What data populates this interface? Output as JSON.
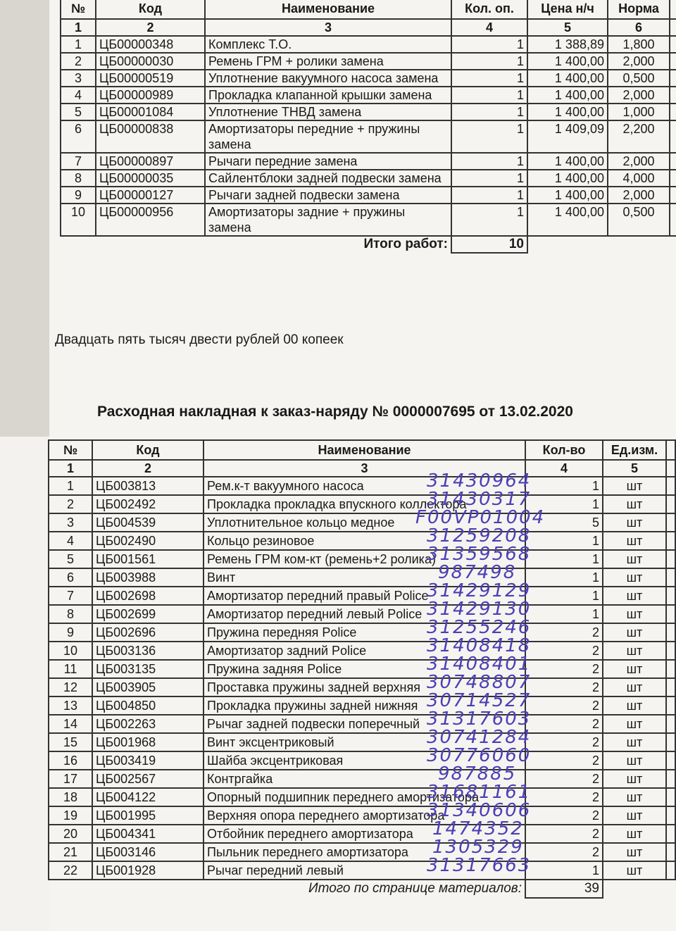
{
  "works": {
    "headers": [
      "№",
      "Код",
      "Наименование",
      "Кол. оп.",
      "Цена н/ч",
      "Норма"
    ],
    "col_numbers": [
      "1",
      "2",
      "3",
      "4",
      "5",
      "6"
    ],
    "rows": [
      {
        "n": "1",
        "code": "ЦБ00000348",
        "name": "Комплекс Т.О.",
        "qty": "1",
        "price": "1 388,89",
        "norm": "1,800"
      },
      {
        "n": "2",
        "code": "ЦБ00000030",
        "name": "Ремень ГРМ + ролики замена",
        "qty": "1",
        "price": "1 400,00",
        "norm": "2,000"
      },
      {
        "n": "3",
        "code": "ЦБ00000519",
        "name": "Уплотнение  вакуумного насоса замена",
        "qty": "1",
        "price": "1 400,00",
        "norm": "0,500"
      },
      {
        "n": "4",
        "code": "ЦБ00000989",
        "name": "Прокладка клапанной крышки замена",
        "qty": "1",
        "price": "1 400,00",
        "norm": "2,000"
      },
      {
        "n": "5",
        "code": "ЦБ00001084",
        "name": "Уплотнение ТНВД замена",
        "qty": "1",
        "price": "1 400,00",
        "norm": "1,000"
      },
      {
        "n": "6",
        "code": "ЦБ00000838",
        "name": "Амортизаторы передние + пружины замена",
        "qty": "1",
        "price": "1 409,09",
        "norm": "2,200"
      },
      {
        "n": "7",
        "code": "ЦБ00000897",
        "name": "Рычаги передние замена",
        "qty": "1",
        "price": "1 400,00",
        "norm": "2,000"
      },
      {
        "n": "8",
        "code": "ЦБ00000035",
        "name": "Сайлентблоки задней подвески замена",
        "qty": "1",
        "price": "1 400,00",
        "norm": "4,000"
      },
      {
        "n": "9",
        "code": "ЦБ00000127",
        "name": "Рычаги задней подвески замена",
        "qty": "1",
        "price": "1 400,00",
        "norm": "2,000"
      },
      {
        "n": "10",
        "code": "ЦБ00000956",
        "name": "Амортизаторы задние + пружины замена",
        "qty": "1",
        "price": "1 400,00",
        "norm": "0,500"
      }
    ],
    "total_label": "Итого работ:",
    "total_qty": "10"
  },
  "amount_words": "Двадцать пять тысяч двести рублей 00 копеек",
  "invoice_title": "Расходная накладная к заказ-наряду №  0000007695 от 13.02.2020",
  "materials": {
    "headers": [
      "№",
      "Код",
      "Наименование",
      "Кол-во",
      "Ед.изм."
    ],
    "col_numbers": [
      "1",
      "2",
      "3",
      "4",
      "5"
    ],
    "rows": [
      {
        "n": "1",
        "code": "ЦБ003813",
        "name": "Рем.к-т вакуумного насоса",
        "hw": "31430964",
        "qty": "1",
        "unit": "шт"
      },
      {
        "n": "2",
        "code": "ЦБ002492",
        "name": "Прокладка прокладка впускного коллектора",
        "hw": "31430317",
        "qty": "1",
        "unit": "шт"
      },
      {
        "n": "3",
        "code": "ЦБ004539",
        "name": "Уплотнительное кольцо медное",
        "hw": "F00VP01004",
        "qty": "5",
        "unit": "шт"
      },
      {
        "n": "4",
        "code": "ЦБ002490",
        "name": "Кольцо резиновое",
        "hw": "31259208",
        "qty": "1",
        "unit": "шт"
      },
      {
        "n": "5",
        "code": "ЦБ001561",
        "name": "Ремень ГРМ ком-кт (ремень+2 ролика)",
        "hw": "31359568",
        "qty": "1",
        "unit": "шт"
      },
      {
        "n": "6",
        "code": "ЦБ003988",
        "name": "Винт",
        "hw": "987498",
        "qty": "1",
        "unit": "шт"
      },
      {
        "n": "7",
        "code": "ЦБ002698",
        "name": "Амортизатор передний правый Police",
        "hw": "31429129",
        "qty": "1",
        "unit": "шт"
      },
      {
        "n": "8",
        "code": "ЦБ002699",
        "name": "Амортизатор передний левый Police",
        "hw": "31429130",
        "qty": "1",
        "unit": "шт"
      },
      {
        "n": "9",
        "code": "ЦБ002696",
        "name": "Пружина передняя Police",
        "hw": "31255246",
        "qty": "2",
        "unit": "шт"
      },
      {
        "n": "10",
        "code": "ЦБ003136",
        "name": "Амортизатор задний Police",
        "hw": "31408418",
        "qty": "2",
        "unit": "шт"
      },
      {
        "n": "11",
        "code": "ЦБ003135",
        "name": "Пружина задняя Police",
        "hw": "31408401",
        "qty": "2",
        "unit": "шт"
      },
      {
        "n": "12",
        "code": "ЦБ003905",
        "name": "Проставка пружины задней верхняя",
        "hw": "30748807",
        "qty": "2",
        "unit": "шт"
      },
      {
        "n": "13",
        "code": "ЦБ004850",
        "name": "Прокладка пружины задней нижняя",
        "hw": "30714527",
        "qty": "2",
        "unit": "шт"
      },
      {
        "n": "14",
        "code": "ЦБ002263",
        "name": "Рычаг задней подвески поперечный",
        "hw": "31317603",
        "qty": "2",
        "unit": "шт"
      },
      {
        "n": "15",
        "code": "ЦБ001968",
        "name": "Винт эксцентриковый",
        "hw": "30741284",
        "qty": "2",
        "unit": "шт"
      },
      {
        "n": "16",
        "code": "ЦБ003419",
        "name": "Шайба эксцентриковая",
        "hw": "30776060",
        "qty": "2",
        "unit": "шт"
      },
      {
        "n": "17",
        "code": "ЦБ002567",
        "name": "Контргайка",
        "hw": "987885",
        "qty": "2",
        "unit": "шт"
      },
      {
        "n": "18",
        "code": "ЦБ004122",
        "name": "Опорный подшипник переднего амортизатора",
        "hw": "31681161",
        "qty": "2",
        "unit": "шт"
      },
      {
        "n": "19",
        "code": "ЦБ001995",
        "name": "Верхняя опора переднего амортизатора",
        "hw": "31340606",
        "qty": "2",
        "unit": "шт"
      },
      {
        "n": "20",
        "code": "ЦБ004341",
        "name": "Отбойник переднего амортизатора",
        "hw": "1474352",
        "qty": "2",
        "unit": "шт"
      },
      {
        "n": "21",
        "code": "ЦБ003146",
        "name": "Пыльник переднего амортизатора",
        "hw": "1305329",
        "qty": "2",
        "unit": "шт"
      },
      {
        "n": "22",
        "code": "ЦБ001928",
        "name": "Рычаг передний левый",
        "hw": "31317663",
        "qty": "1",
        "unit": "шт"
      }
    ],
    "total_label": "Итого по странице материалов:",
    "total_qty": "39"
  },
  "colors": {
    "ink": "#4b3fb5",
    "paper": "#f6f4f1"
  }
}
